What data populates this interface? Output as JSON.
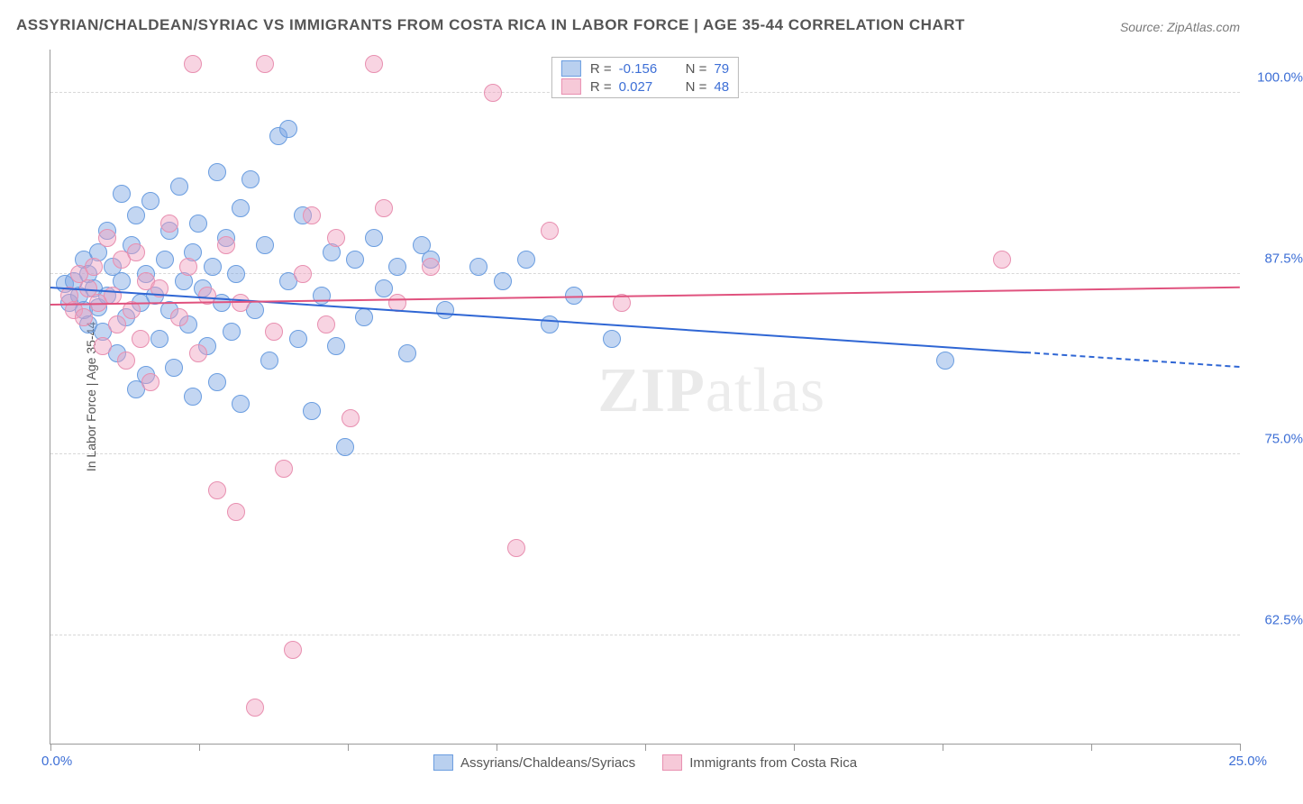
{
  "title": "ASSYRIAN/CHALDEAN/SYRIAC VS IMMIGRANTS FROM COSTA RICA IN LABOR FORCE | AGE 35-44 CORRELATION CHART",
  "source": "Source: ZipAtlas.com",
  "y_axis_label": "In Labor Force | Age 35-44",
  "watermark_bold": "ZIP",
  "watermark_thin": "atlas",
  "chart": {
    "type": "scatter",
    "x_range": [
      0,
      25
    ],
    "y_range": [
      55,
      103
    ],
    "y_ticks": [
      62.5,
      75.0,
      87.5,
      100.0
    ],
    "y_tick_labels": [
      "62.5%",
      "75.0%",
      "87.5%",
      "100.0%"
    ],
    "x_ticks": [
      0,
      3.125,
      6.25,
      9.375,
      12.5,
      15.625,
      18.75,
      21.875,
      25
    ],
    "x_origin_label": "0.0%",
    "x_end_label": "25.0%",
    "grid_color": "#d8d8d8",
    "point_radius": 9,
    "series": [
      {
        "name": "Assyrians/Chaldeans/Syriacs",
        "color_fill": "rgba(121,164,226,0.45)",
        "color_stroke": "#6a9de0",
        "swatch_fill": "#b9d0ef",
        "swatch_border": "#6a9de0",
        "r_value": "-0.156",
        "n_value": "79",
        "trend": {
          "x1": 0,
          "y1": 86.5,
          "x2": 20.5,
          "y2": 82.0,
          "color": "#2f66d4",
          "dash_after_x": 20.5,
          "x2_dash": 25,
          "y2_dash": 81.0
        },
        "points": [
          [
            0.3,
            86.8
          ],
          [
            0.4,
            85.5
          ],
          [
            0.5,
            87.0
          ],
          [
            0.6,
            86.0
          ],
          [
            0.7,
            88.5
          ],
          [
            0.7,
            85.0
          ],
          [
            0.8,
            87.5
          ],
          [
            0.8,
            84.0
          ],
          [
            0.9,
            86.5
          ],
          [
            1.0,
            89.0
          ],
          [
            1.0,
            85.2
          ],
          [
            1.1,
            83.5
          ],
          [
            1.2,
            90.5
          ],
          [
            1.2,
            86.0
          ],
          [
            1.3,
            88.0
          ],
          [
            1.4,
            82.0
          ],
          [
            1.5,
            93.0
          ],
          [
            1.5,
            87.0
          ],
          [
            1.6,
            84.5
          ],
          [
            1.7,
            89.5
          ],
          [
            1.8,
            91.5
          ],
          [
            1.8,
            79.5
          ],
          [
            1.9,
            85.5
          ],
          [
            2.0,
            87.5
          ],
          [
            2.0,
            80.5
          ],
          [
            2.1,
            92.5
          ],
          [
            2.2,
            86.0
          ],
          [
            2.3,
            83.0
          ],
          [
            2.4,
            88.5
          ],
          [
            2.5,
            90.5
          ],
          [
            2.5,
            85.0
          ],
          [
            2.6,
            81.0
          ],
          [
            2.7,
            93.5
          ],
          [
            2.8,
            87.0
          ],
          [
            2.9,
            84.0
          ],
          [
            3.0,
            89.0
          ],
          [
            3.0,
            79.0
          ],
          [
            3.1,
            91.0
          ],
          [
            3.2,
            86.5
          ],
          [
            3.3,
            82.5
          ],
          [
            3.4,
            88.0
          ],
          [
            3.5,
            94.5
          ],
          [
            3.5,
            80.0
          ],
          [
            3.6,
            85.5
          ],
          [
            3.7,
            90.0
          ],
          [
            3.8,
            83.5
          ],
          [
            3.9,
            87.5
          ],
          [
            4.0,
            92.0
          ],
          [
            4.0,
            78.5
          ],
          [
            4.2,
            94.0
          ],
          [
            4.3,
            85.0
          ],
          [
            4.5,
            89.5
          ],
          [
            4.6,
            81.5
          ],
          [
            4.8,
            97.0
          ],
          [
            5.0,
            97.5
          ],
          [
            5.0,
            87.0
          ],
          [
            5.2,
            83.0
          ],
          [
            5.3,
            91.5
          ],
          [
            5.5,
            78.0
          ],
          [
            5.7,
            86.0
          ],
          [
            5.9,
            89.0
          ],
          [
            6.0,
            82.5
          ],
          [
            6.2,
            75.5
          ],
          [
            6.4,
            88.5
          ],
          [
            6.6,
            84.5
          ],
          [
            6.8,
            90.0
          ],
          [
            7.0,
            86.5
          ],
          [
            7.3,
            88.0
          ],
          [
            7.5,
            82.0
          ],
          [
            7.8,
            89.5
          ],
          [
            8.0,
            88.5
          ],
          [
            8.3,
            85.0
          ],
          [
            9.0,
            88.0
          ],
          [
            9.5,
            87.0
          ],
          [
            10.0,
            88.5
          ],
          [
            10.5,
            84.0
          ],
          [
            11.0,
            86.0
          ],
          [
            11.8,
            83.0
          ],
          [
            18.8,
            81.5
          ]
        ]
      },
      {
        "name": "Immigrants from Costa Rica",
        "color_fill": "rgba(240,160,190,0.45)",
        "color_stroke": "#e88fb0",
        "swatch_fill": "#f6c9d8",
        "swatch_border": "#e88fb0",
        "r_value": "0.027",
        "n_value": "48",
        "trend": {
          "x1": 0,
          "y1": 85.3,
          "x2": 25,
          "y2": 86.5,
          "color": "#e0527e"
        },
        "points": [
          [
            0.4,
            86.0
          ],
          [
            0.5,
            85.0
          ],
          [
            0.6,
            87.5
          ],
          [
            0.7,
            84.5
          ],
          [
            0.8,
            86.5
          ],
          [
            0.9,
            88.0
          ],
          [
            1.0,
            85.5
          ],
          [
            1.1,
            82.5
          ],
          [
            1.2,
            90.0
          ],
          [
            1.3,
            86.0
          ],
          [
            1.4,
            84.0
          ],
          [
            1.5,
            88.5
          ],
          [
            1.6,
            81.5
          ],
          [
            1.7,
            85.0
          ],
          [
            1.8,
            89.0
          ],
          [
            1.9,
            83.0
          ],
          [
            2.0,
            87.0
          ],
          [
            2.1,
            80.0
          ],
          [
            2.3,
            86.5
          ],
          [
            2.5,
            91.0
          ],
          [
            2.7,
            84.5
          ],
          [
            2.9,
            88.0
          ],
          [
            3.0,
            102.0
          ],
          [
            3.1,
            82.0
          ],
          [
            3.3,
            86.0
          ],
          [
            3.5,
            72.5
          ],
          [
            3.7,
            89.5
          ],
          [
            3.9,
            71.0
          ],
          [
            4.0,
            85.5
          ],
          [
            4.3,
            57.5
          ],
          [
            4.5,
            102.0
          ],
          [
            4.7,
            83.5
          ],
          [
            4.9,
            74.0
          ],
          [
            5.1,
            61.5
          ],
          [
            5.3,
            87.5
          ],
          [
            5.5,
            91.5
          ],
          [
            5.8,
            84.0
          ],
          [
            6.0,
            90.0
          ],
          [
            6.3,
            77.5
          ],
          [
            6.8,
            102.0
          ],
          [
            7.0,
            92.0
          ],
          [
            7.3,
            85.5
          ],
          [
            8.0,
            88.0
          ],
          [
            9.3,
            100.0
          ],
          [
            9.8,
            68.5
          ],
          [
            10.5,
            90.5
          ],
          [
            12.0,
            85.5
          ],
          [
            20.0,
            88.5
          ]
        ]
      }
    ]
  }
}
